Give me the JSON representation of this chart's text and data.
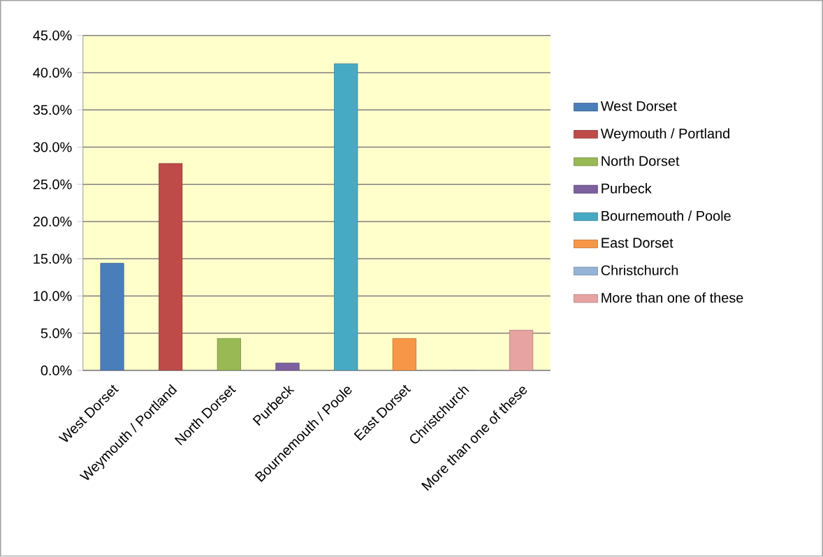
{
  "chart_data": {
    "type": "bar",
    "categories": [
      "West Dorset",
      "Weymouth / Portland",
      "North Dorset",
      "Purbeck",
      "Bournemouth / Poole",
      "East Dorset",
      "Christchurch",
      "More than one of these"
    ],
    "series": [
      {
        "name": "West Dorset",
        "color": "#4a7ebb",
        "values": [
          14.4,
          null,
          null,
          null,
          null,
          null,
          null,
          null
        ]
      },
      {
        "name": "Weymouth / Portland",
        "color": "#be4b48",
        "values": [
          null,
          27.8,
          null,
          null,
          null,
          null,
          null,
          null
        ]
      },
      {
        "name": "North Dorset",
        "color": "#98b954",
        "values": [
          null,
          null,
          4.3,
          null,
          null,
          null,
          null,
          null
        ]
      },
      {
        "name": "Purbeck",
        "color": "#7d60a0",
        "values": [
          null,
          null,
          null,
          1.0,
          null,
          null,
          null,
          null
        ]
      },
      {
        "name": "Bournemouth / Poole",
        "color": "#46aac5",
        "values": [
          null,
          null,
          null,
          null,
          41.2,
          null,
          null,
          null
        ]
      },
      {
        "name": "East Dorset",
        "color": "#f79646",
        "values": [
          null,
          null,
          null,
          null,
          null,
          4.3,
          null,
          null
        ]
      },
      {
        "name": "Christchurch",
        "color": "#95b3d7",
        "values": [
          null,
          null,
          null,
          null,
          null,
          null,
          0,
          null
        ]
      },
      {
        "name": "More than one of these",
        "color": "#e6a3a1",
        "values": [
          null,
          null,
          null,
          null,
          null,
          null,
          null,
          5.4
        ]
      }
    ],
    "ylim": [
      0,
      45
    ],
    "yticks": [
      {
        "value": 0,
        "label": "0.0%"
      },
      {
        "value": 5,
        "label": "5.0%"
      },
      {
        "value": 10,
        "label": "10.0%"
      },
      {
        "value": 15,
        "label": "15.0%"
      },
      {
        "value": 20,
        "label": "20.0%"
      },
      {
        "value": 25,
        "label": "25.0%"
      },
      {
        "value": 30,
        "label": "30.0%"
      },
      {
        "value": 35,
        "label": "35.0%"
      },
      {
        "value": 40,
        "label": "40.0%"
      },
      {
        "value": 45,
        "label": "45.0%"
      }
    ],
    "grid": "y",
    "legend": "right"
  }
}
